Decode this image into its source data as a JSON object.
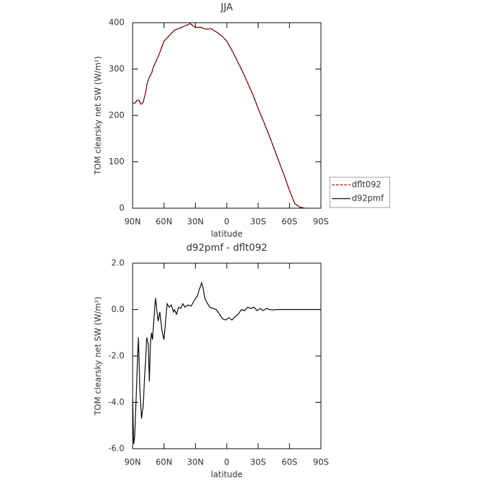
{
  "chart_data": [
    {
      "type": "line",
      "title": "JJA",
      "xlabel": "latitude",
      "ylabel": "TOM clearsky net SW (W/m²)",
      "x": [
        90,
        88,
        86,
        84,
        82,
        80,
        78,
        76,
        74,
        72,
        70,
        65,
        60,
        55,
        50,
        45,
        40,
        35,
        30,
        25,
        20,
        15,
        10,
        5,
        0,
        -5,
        -10,
        -15,
        -20,
        -25,
        -30,
        -35,
        -40,
        -45,
        -50,
        -55,
        -60,
        -65,
        -70,
        -75
      ],
      "series": [
        {
          "name": "dflt092",
          "color": "#cc0000",
          "linestyle": "dashed",
          "values": [
            227,
            226,
            232,
            233,
            224,
            228,
            245,
            270,
            283,
            290,
            305,
            330,
            360,
            372,
            384,
            388,
            393,
            398,
            390,
            390,
            386,
            387,
            380,
            372,
            360,
            340,
            318,
            295,
            270,
            245,
            215,
            188,
            160,
            130,
            100,
            70,
            38,
            10,
            2,
            0
          ]
        },
        {
          "name": "d92pmf",
          "color": "#000000",
          "linestyle": "solid",
          "values": [
            227,
            226,
            232,
            233,
            224,
            228,
            245,
            270,
            283,
            290,
            305,
            330,
            360,
            372,
            384,
            388,
            393,
            398,
            390,
            390,
            386,
            387,
            380,
            372,
            360,
            340,
            318,
            295,
            270,
            245,
            215,
            188,
            160,
            130,
            100,
            70,
            38,
            10,
            2,
            0
          ]
        }
      ],
      "xlim": [
        90,
        -90
      ],
      "xticks": [
        {
          "value": 90,
          "label": "90N"
        },
        {
          "value": 60,
          "label": "60N"
        },
        {
          "value": 30,
          "label": "30N"
        },
        0,
        {
          "value": -30,
          "label": "30S"
        },
        {
          "value": -60,
          "label": "60S"
        },
        {
          "value": -90,
          "label": "90S"
        }
      ],
      "ylim": [
        0,
        400
      ],
      "yticks": [
        0,
        100,
        200,
        300,
        400
      ],
      "legend": "right"
    },
    {
      "type": "line",
      "title": "d92pmf - dflt092",
      "xlabel": "latitude",
      "ylabel": "TOM clearsky net SW (W/m²)",
      "x": [
        90,
        89,
        88,
        86,
        84.5,
        83,
        81.5,
        80,
        78,
        76.5,
        75,
        74,
        73,
        72,
        71,
        69.5,
        68,
        67,
        65.5,
        64,
        62,
        60,
        58.5,
        57,
        55,
        53,
        51,
        50,
        48,
        46,
        44,
        42,
        40,
        37,
        34,
        31,
        28,
        26,
        24,
        22.5,
        21,
        19,
        16,
        13,
        10,
        7,
        4,
        1,
        -2,
        -5,
        -8,
        -11,
        -14,
        -17,
        -20,
        -23,
        -26,
        -29,
        -32,
        -35,
        -38,
        -41,
        -44,
        -47,
        -50,
        -60,
        -70,
        -80,
        -90
      ],
      "values": [
        -3.8,
        -5.8,
        -5.5,
        -3,
        -1.2,
        -3.5,
        -4.7,
        -4.2,
        -2.5,
        -1.2,
        -1.5,
        -3.1,
        -1.5,
        -1.0,
        -1.3,
        -0.3,
        0.5,
        0.0,
        -0.5,
        -0.1,
        -0.9,
        -1.3,
        -0.5,
        0.25,
        0.1,
        0.2,
        -0.1,
        0.0,
        -0.2,
        0.1,
        0.05,
        0.25,
        0.1,
        0.2,
        0.15,
        0.4,
        0.6,
        0.9,
        1.15,
        0.9,
        0.5,
        0.3,
        0.1,
        0.05,
        0.0,
        -0.2,
        -0.4,
        -0.45,
        -0.35,
        -0.45,
        -0.3,
        -0.2,
        0.0,
        -0.05,
        0.1,
        0.05,
        0.1,
        -0.05,
        0.05,
        -0.05,
        0.05,
        0.0,
        -0.02,
        0.0,
        0.0,
        0,
        0,
        0,
        0
      ],
      "color": "#000000",
      "xlim": [
        90,
        -90
      ],
      "xticks": [
        {
          "value": 90,
          "label": "90N"
        },
        {
          "value": 60,
          "label": "60N"
        },
        {
          "value": 30,
          "label": "30N"
        },
        0,
        {
          "value": -30,
          "label": "30S"
        },
        {
          "value": -60,
          "label": "60S"
        },
        {
          "value": -90,
          "label": "90S"
        }
      ],
      "ylim": [
        -6,
        2
      ],
      "yticks": [
        {
          "value": -6,
          "label": "-6.0"
        },
        {
          "value": -4,
          "label": "-4.0"
        },
        {
          "value": -2,
          "label": "-2.0"
        },
        {
          "value": 0,
          "label": "0.0"
        },
        {
          "value": 2,
          "label": "2.0"
        }
      ]
    }
  ]
}
